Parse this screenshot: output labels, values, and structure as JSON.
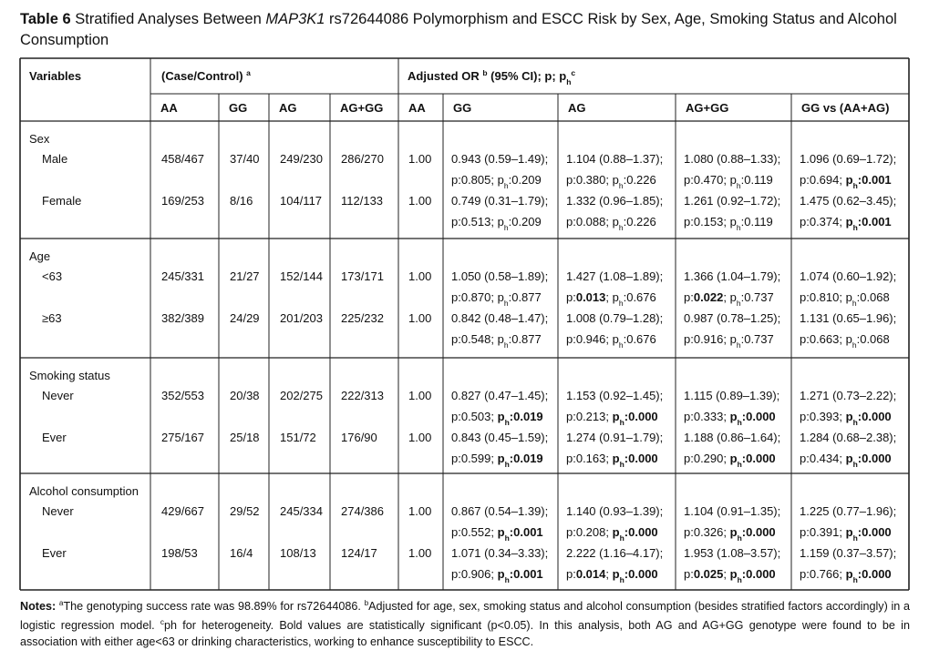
{
  "title": [
    {
      "text": "Table 6",
      "bold": true
    },
    " Stratified Analyses Between ",
    {
      "text": "MAP3K1",
      "italic": true
    },
    " rs72644086 Polymorphism and ESCC Risk by Sex, Age, Smoking Status and Alcohol Consumption"
  ],
  "table": {
    "header": {
      "variables": "Variables",
      "case_control": [
        "(Case/Control) ",
        {
          "text": "a",
          "sup": true
        }
      ],
      "adjusted": [
        "Adjusted OR ",
        {
          "text": "b",
          "sup": true
        },
        " (95% CI); p; p",
        {
          "text": "h",
          "sub": true
        },
        {
          "text": "c",
          "sup": true
        }
      ],
      "columns": [
        "AA",
        "GG",
        "AG",
        "AG+GG",
        "AA",
        "GG",
        "AG",
        "AG+GG",
        "GG vs (AA+AG)"
      ]
    },
    "p_label": "p:",
    "separator": "; ",
    "ph_label": [
      "p",
      {
        "text": "h",
        "sub": true
      },
      ":"
    ],
    "groups": [
      {
        "label": "Sex",
        "rows": [
          {
            "label": "Male",
            "counts": [
              "458/467",
              "37/40",
              "249/230",
              "286/270"
            ],
            "aa": "1.00",
            "stats": [
              {
                "or": "0.943 (0.59–1.49);",
                "p": "0.805",
                "ph": "0.209"
              },
              {
                "or": "1.104 (0.88–1.37);",
                "p": "0.380",
                "ph": "0.226"
              },
              {
                "or": "1.080 (0.88–1.33);",
                "p": "0.470",
                "ph": "0.119"
              },
              {
                "or": "1.096 (0.69–1.72);",
                "p": "0.694",
                "ph": "0.001",
                "ph_bold": true
              }
            ]
          },
          {
            "label": "Female",
            "counts": [
              "169/253",
              "8/16",
              "104/117",
              "112/133"
            ],
            "aa": "1.00",
            "stats": [
              {
                "or": "0.749 (0.31–1.79);",
                "p": "0.513",
                "ph": "0.209"
              },
              {
                "or": "1.332 (0.96–1.85);",
                "p": "0.088",
                "ph": "0.226"
              },
              {
                "or": "1.261 (0.92–1.72);",
                "p": "0.153",
                "ph": "0.119"
              },
              {
                "or": "1.475 (0.62–3.45);",
                "p": "0.374",
                "ph": "0.001",
                "ph_bold": true
              }
            ]
          }
        ]
      },
      {
        "label": "Age",
        "rows": [
          {
            "label": "<63",
            "counts": [
              "245/331",
              "21/27",
              "152/144",
              "173/171"
            ],
            "aa": "1.00",
            "stats": [
              {
                "or": "1.050 (0.58–1.89);",
                "p": "0.870",
                "ph": "0.877"
              },
              {
                "or": "1.427 (1.08–1.89);",
                "p": "0.013",
                "ph": "0.676",
                "p_bold": true
              },
              {
                "or": "1.366 (1.04–1.79);",
                "p": "0.022",
                "ph": "0.737",
                "p_bold": true
              },
              {
                "or": "1.074 (0.60–1.92);",
                "p": "0.810",
                "ph": "0.068"
              }
            ]
          },
          {
            "label": "≥63",
            "counts": [
              "382/389",
              "24/29",
              "201/203",
              "225/232"
            ],
            "aa": "1.00",
            "stats": [
              {
                "or": "0.842 (0.48–1.47);",
                "p": "0.548",
                "ph": "0.877"
              },
              {
                "or": "1.008 (0.79–1.28);",
                "p": "0.946",
                "ph": "0.676"
              },
              {
                "or": "0.987 (0.78–1.25);",
                "p": "0.916",
                "ph": "0.737"
              },
              {
                "or": "1.131 (0.65–1.96);",
                "p": "0.663",
                "ph": "0.068"
              }
            ]
          }
        ]
      },
      {
        "label": "Smoking status",
        "rows": [
          {
            "label": "Never",
            "counts": [
              "352/553",
              "20/38",
              "202/275",
              "222/313"
            ],
            "aa": "1.00",
            "stats": [
              {
                "or": "0.827 (0.47–1.45);",
                "p": "0.503",
                "ph": "0.019",
                "ph_bold": true
              },
              {
                "or": "1.153 (0.92–1.45);",
                "p": "0.213",
                "ph": "0.000",
                "ph_bold": true
              },
              {
                "or": "1.115 (0.89–1.39);",
                "p": "0.333",
                "ph": "0.000",
                "ph_bold": true
              },
              {
                "or": "1.271 (0.73–2.22);",
                "p": "0.393",
                "ph": "0.000",
                "ph_bold": true
              }
            ]
          },
          {
            "label": "Ever",
            "counts": [
              "275/167",
              "25/18",
              "151/72",
              "176/90"
            ],
            "aa": "1.00",
            "stats": [
              {
                "or": "0.843 (0.45–1.59);",
                "p": "0.599",
                "ph": "0.019",
                "ph_bold": true
              },
              {
                "or": "1.274 (0.91–1.79);",
                "p": "0.163",
                "ph": "0.000",
                "ph_bold": true
              },
              {
                "or": "1.188 (0.86–1.64);",
                "p": "0.290",
                "ph": "0.000",
                "ph_bold": true
              },
              {
                "or": "1.284 (0.68–2.38);",
                "p": "0.434",
                "ph": "0.000",
                "ph_bold": true
              }
            ]
          }
        ]
      },
      {
        "label": "Alcohol consumption",
        "rows": [
          {
            "label": "Never",
            "counts": [
              "429/667",
              "29/52",
              "245/334",
              "274/386"
            ],
            "aa": "1.00",
            "stats": [
              {
                "or": "0.867 (0.54–1.39);",
                "p": "0.552",
                "ph": "0.001",
                "ph_bold": true
              },
              {
                "or": "1.140 (0.93–1.39);",
                "p": "0.208",
                "ph": "0.000",
                "ph_bold": true
              },
              {
                "or": "1.104 (0.91–1.35);",
                "p": "0.326",
                "ph": "0.000",
                "ph_bold": true
              },
              {
                "or": "1.225 (0.77–1.96);",
                "p": "0.391",
                "ph": "0.000",
                "ph_bold": true
              }
            ]
          },
          {
            "label": "Ever",
            "counts": [
              "198/53",
              "16/4",
              "108/13",
              "124/17"
            ],
            "aa": "1.00",
            "stats": [
              {
                "or": "1.071 (0.34–3.33);",
                "p": "0.906",
                "ph": "0.001",
                "ph_bold": true
              },
              {
                "or": "2.222 (1.16–4.17);",
                "p": "0.014",
                "ph": "0.000",
                "p_bold": true,
                "ph_bold": true
              },
              {
                "or": "1.953 (1.08–3.57);",
                "p": "0.025",
                "ph": "0.000",
                "p_bold": true,
                "ph_bold": true
              },
              {
                "or": "1.159 (0.37–3.57);",
                "p": "0.766",
                "ph": "0.000",
                "ph_bold": true
              }
            ]
          }
        ]
      }
    ]
  },
  "notes": [
    {
      "text": "Notes:",
      "bold": true
    },
    " ",
    {
      "text": "a",
      "sup": true
    },
    "The genotyping success rate was 98.89% for rs72644086. ",
    {
      "text": "b",
      "sup": true
    },
    "Adjusted for age, sex, smoking status and alcohol consumption (besides stratified factors accordingly) in a logistic regression model. ",
    {
      "text": "c",
      "sup": true
    },
    "ph for heterogeneity. Bold values are statistically significant (p<0.05). In this analysis, both AG and AG+GG genotype were found to be in association with either age<63 or drinking characteristics, working to enhance susceptibility to ESCC."
  ]
}
